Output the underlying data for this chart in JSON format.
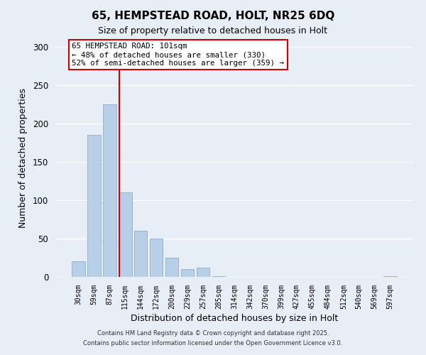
{
  "title": "65, HEMPSTEAD ROAD, HOLT, NR25 6DQ",
  "subtitle": "Size of property relative to detached houses in Holt",
  "xlabel": "Distribution of detached houses by size in Holt",
  "ylabel": "Number of detached properties",
  "bar_color": "#b8cfe8",
  "bar_edge_color": "#8aaecc",
  "fig_facecolor": "#e8eef5",
  "ax_facecolor": "#e8eef5",
  "grid_color": "#ffffff",
  "bin_labels": [
    "30sqm",
    "59sqm",
    "87sqm",
    "115sqm",
    "144sqm",
    "172sqm",
    "200sqm",
    "229sqm",
    "257sqm",
    "285sqm",
    "314sqm",
    "342sqm",
    "370sqm",
    "399sqm",
    "427sqm",
    "455sqm",
    "484sqm",
    "512sqm",
    "540sqm",
    "569sqm",
    "597sqm"
  ],
  "bar_values": [
    20,
    185,
    225,
    110,
    60,
    50,
    25,
    10,
    12,
    1,
    0,
    0,
    0,
    0,
    0,
    0,
    0,
    0,
    0,
    0,
    1
  ],
  "ylim": [
    0,
    310
  ],
  "yticks": [
    0,
    50,
    100,
    150,
    200,
    250,
    300
  ],
  "red_line_x": 2.65,
  "annotation_title": "65 HEMPSTEAD ROAD: 101sqm",
  "annotation_line1": "← 48% of detached houses are smaller (330)",
  "annotation_line2": "52% of semi-detached houses are larger (359) →",
  "footer_line1": "Contains HM Land Registry data © Crown copyright and database right 2025.",
  "footer_line2": "Contains public sector information licensed under the Open Government Licence v3.0."
}
